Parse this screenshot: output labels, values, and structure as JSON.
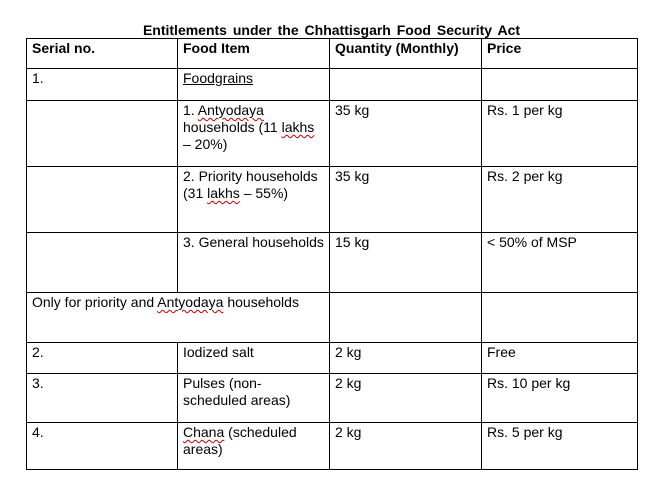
{
  "title": "Entitlements under the Chhattisgarh Food Security Act",
  "headers": {
    "serial": "Serial no.",
    "food_item": "Food Item",
    "quantity": "Quantity (Monthly)",
    "price": "Price"
  },
  "rows": [
    {
      "serial": "1.",
      "item": "Foodgrains",
      "quantity": "",
      "price": ""
    },
    {
      "serial": "",
      "item_parts": [
        "1. ",
        "Antyodaya",
        " households  (11 ",
        "lakhs",
        " – 20%)"
      ],
      "quantity": "35 kg",
      "price": "Rs. 1 per kg"
    },
    {
      "serial": "",
      "item_parts": [
        "2. Priority households  (31 ",
        "lakhs",
        " – 55%)"
      ],
      "quantity": "35 kg",
      "price": "Rs. 2 per kg"
    },
    {
      "serial": "",
      "item": "3. General households",
      "quantity": "15 kg",
      "price": "< 50% of MSP"
    },
    {
      "span_parts": [
        "Only for priority and ",
        "Antyodaya",
        " households"
      ]
    },
    {
      "serial": "2.",
      "item": "Iodized  salt",
      "quantity": "2 kg",
      "price": "Free"
    },
    {
      "serial": "3.",
      "item": "Pulses (non-scheduled areas)",
      "quantity": "2 kg",
      "price": "Rs. 10 per kg"
    },
    {
      "serial": "4.",
      "item_parts": [
        "Chana",
        " (scheduled areas)"
      ],
      "quantity": "2 kg",
      "price": "Rs. 5 per kg"
    }
  ]
}
